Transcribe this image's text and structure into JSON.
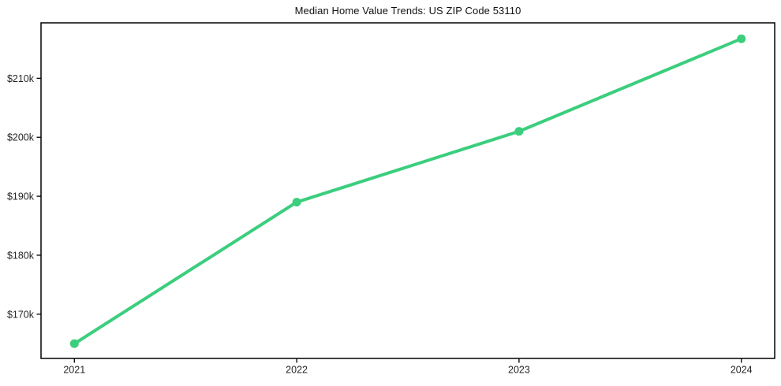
{
  "colors": {
    "line": "#3bce7d",
    "axis": "#000000",
    "tick_text": "#262626",
    "title_text": "#111111",
    "background": "#ffffff"
  },
  "chart_data": {
    "type": "line",
    "title": "Median Home Value Trends: US ZIP Code 53110",
    "x": [
      2021,
      2022,
      2023,
      2024
    ],
    "x_tick_labels": [
      "2021",
      "2022",
      "2023",
      "2024"
    ],
    "series": [
      {
        "name": "Median Home Value",
        "values": [
          165000,
          189000,
          201000,
          216700
        ]
      }
    ],
    "y_ticks": [
      170000,
      180000,
      190000,
      200000,
      210000
    ],
    "y_tick_labels": [
      "$170k",
      "$180k",
      "$190k",
      "$200k",
      "$210k"
    ],
    "xlim": [
      2020.85,
      2024.15
    ],
    "ylim": [
      162500,
      219400
    ],
    "grid": false,
    "legend": "none",
    "marker": "circle",
    "line_width": 4,
    "marker_radius": 5.5
  }
}
